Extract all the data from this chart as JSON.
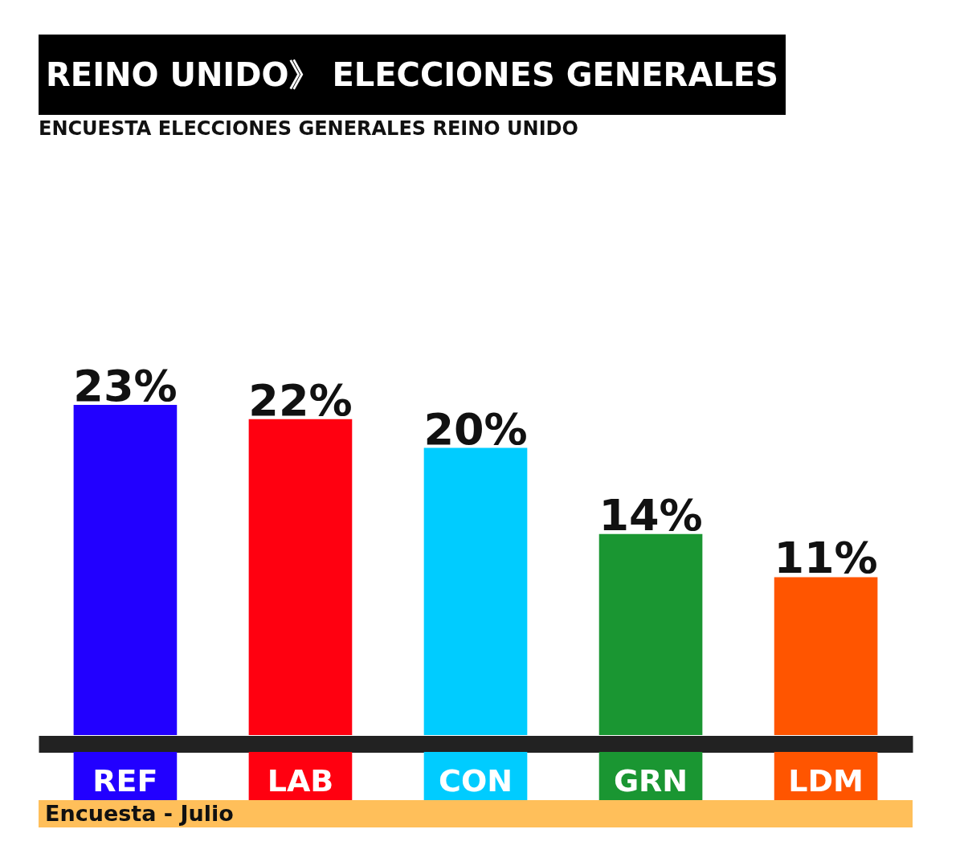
{
  "chart_data": {
    "type": "bar",
    "title": "REINO UNIDO》 ELECCIONES GENERALES",
    "subtitle": "ENCUESTA ELECCIONES GENERALES REINO UNIDO",
    "categories": [
      "REF",
      "LAB",
      "CON",
      "GRN",
      "LDM"
    ],
    "values": [
      23,
      22,
      20,
      14,
      11
    ],
    "value_labels": [
      "23%",
      "22%",
      "20%",
      "14%",
      "11%"
    ],
    "colors": [
      "#2200ff",
      "#ff0010",
      "#00ccff",
      "#1a9632",
      "#ff5500"
    ],
    "annotations": [
      "Encuesta - Julio"
    ]
  }
}
